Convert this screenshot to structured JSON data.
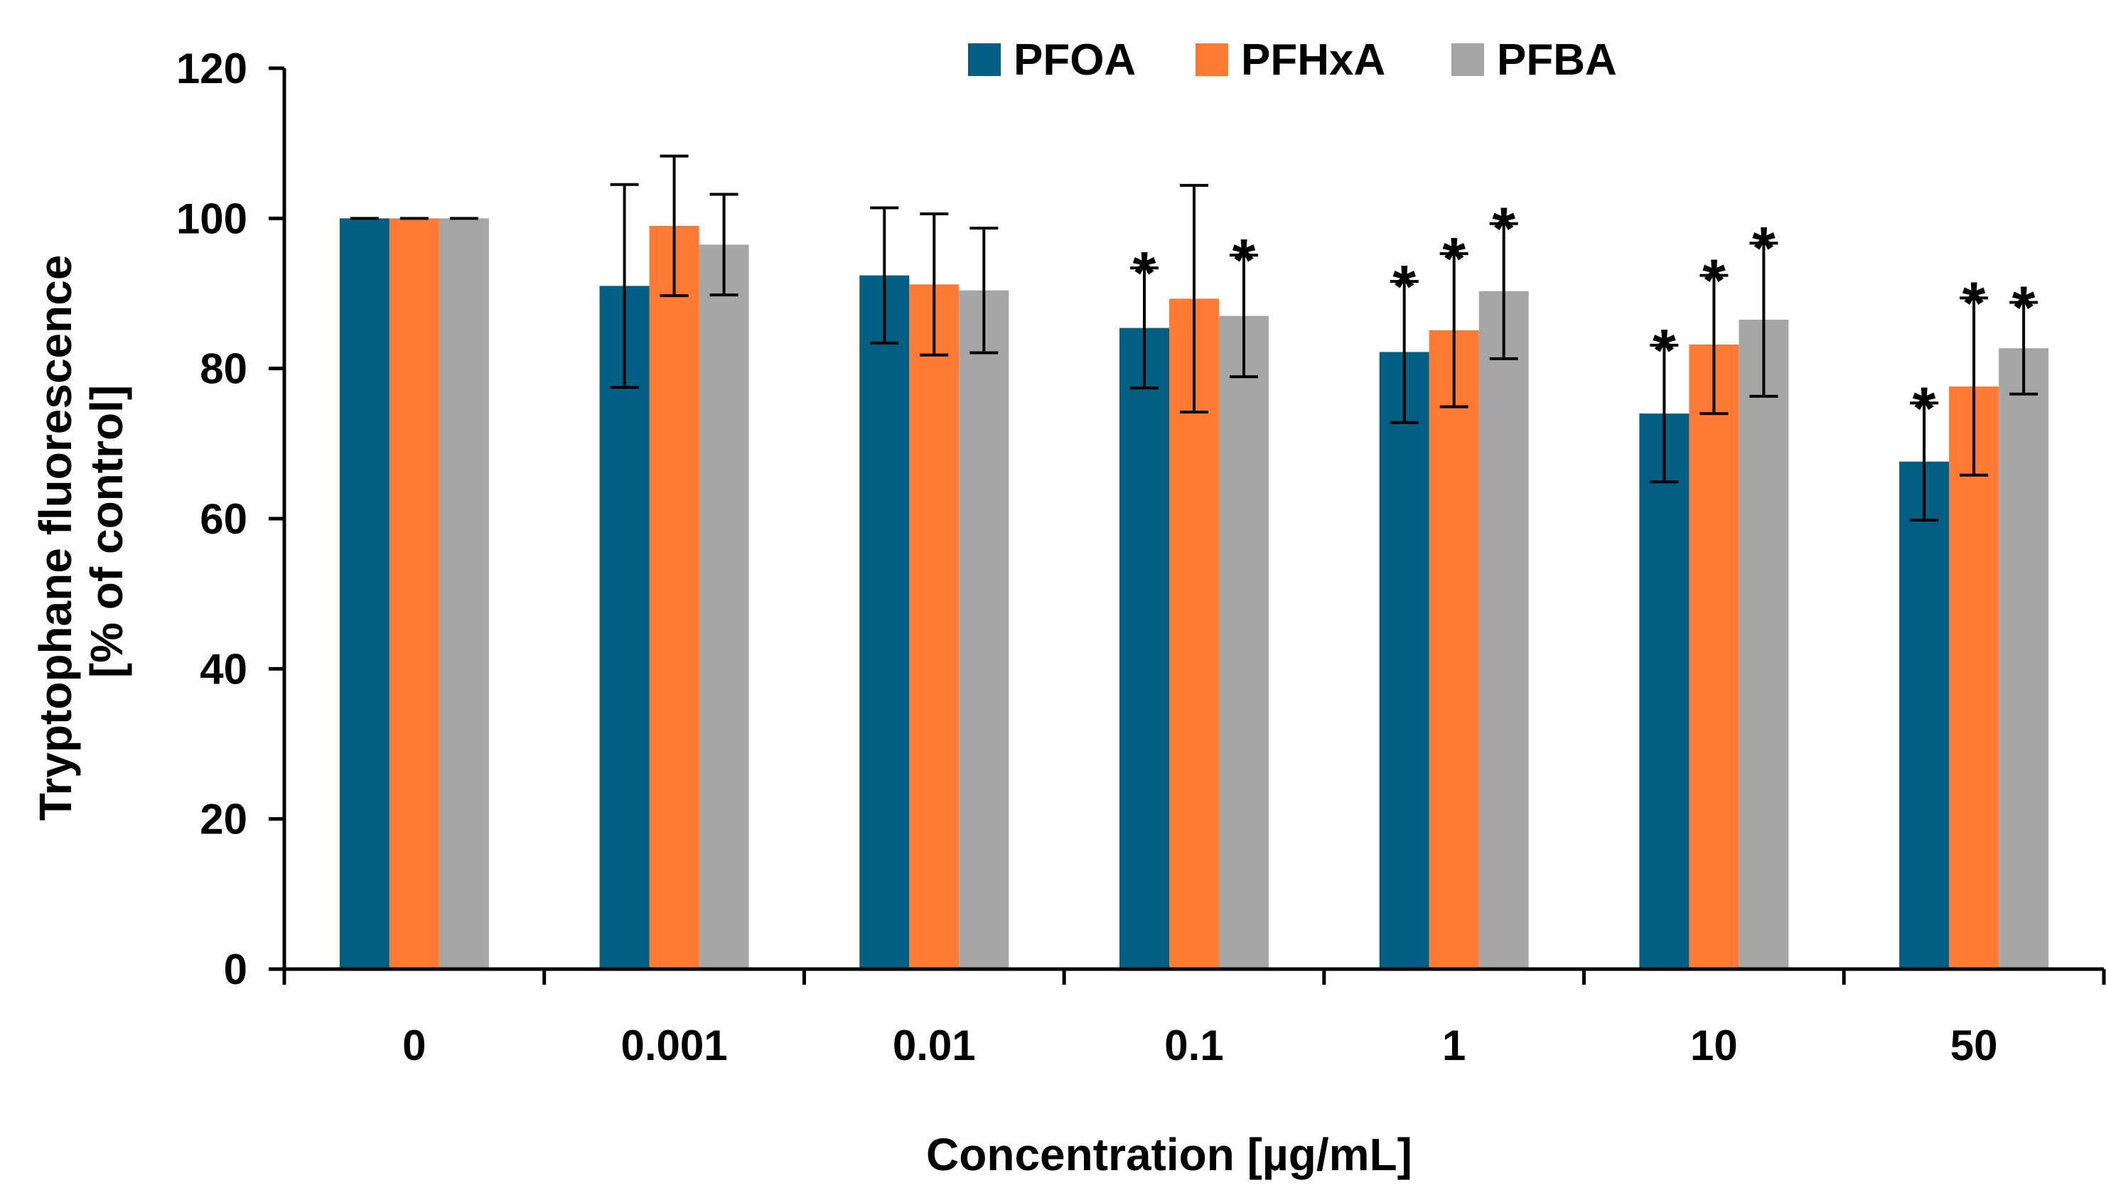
{
  "chart_data": {
    "type": "bar",
    "xlabel": "Concentration [µg/mL]",
    "ylabel_line1": "Tryptophane fluorescence",
    "ylabel_line2": "[% of control]",
    "ylim": [
      0,
      120
    ],
    "yticks": [
      "0",
      "20",
      "40",
      "60",
      "80",
      "100",
      "120"
    ],
    "categories": [
      "0",
      "0.001",
      "0.01",
      "0.1",
      "1",
      "10",
      "50"
    ],
    "legend_position": "top",
    "series": [
      {
        "name": "PFOA",
        "color": "#005F83",
        "values": [
          100,
          91,
          92.4,
          85.4,
          82.2,
          74,
          67.6
        ],
        "errors": [
          0,
          13.5,
          9,
          8,
          9.4,
          9.1,
          7.8
        ],
        "significant": [
          false,
          false,
          false,
          true,
          true,
          true,
          true
        ]
      },
      {
        "name": "PFHxA",
        "color": "#FF7A33",
        "values": [
          100,
          99,
          91.2,
          89.3,
          85.1,
          83.2,
          77.6
        ],
        "errors": [
          0,
          9.3,
          9.4,
          15.1,
          10.2,
          9.2,
          11.8
        ],
        "significant": [
          false,
          false,
          false,
          false,
          true,
          true,
          true
        ]
      },
      {
        "name": "PFBA",
        "color": "#A6A6A6",
        "values": [
          100,
          96.5,
          90.4,
          87,
          90.3,
          86.5,
          82.7
        ],
        "errors": [
          0,
          6.7,
          8.3,
          8.1,
          9,
          10.2,
          6.1
        ],
        "significant": [
          false,
          false,
          false,
          true,
          true,
          true,
          true
        ]
      }
    ],
    "significance_marker": "*"
  }
}
